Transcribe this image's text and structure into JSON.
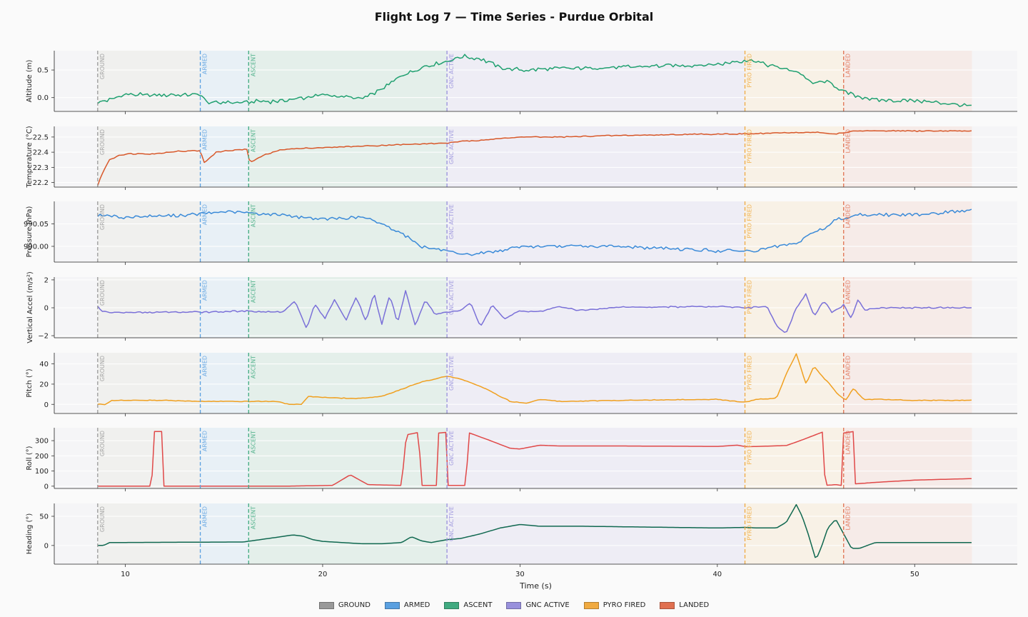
{
  "title": "Flight Log 7 — Time Series - Purdue Orbital",
  "chart_data": {
    "type": "line",
    "xlabel": "Time (s)",
    "xlim": [
      6.4,
      55.2
    ],
    "xticks": [
      10,
      20,
      30,
      40,
      50
    ],
    "x_start": 8.6,
    "x_end": 52.9,
    "phases": [
      {
        "name": "GROUND",
        "start": 8.6,
        "end": 13.8,
        "color": "#999999",
        "shade": "#f0f0ee"
      },
      {
        "name": "ARMED",
        "start": 13.8,
        "end": 16.25,
        "color": "#5aa0e0",
        "shade": "#e8f0f6"
      },
      {
        "name": "ASCENT",
        "start": 16.25,
        "end": 26.3,
        "color": "#40aa80",
        "shade": "#e4efea"
      },
      {
        "name": "GNC ACTIVE",
        "start": 26.3,
        "end": 41.4,
        "color": "#9890dc",
        "shade": "#eeedf5"
      },
      {
        "name": "PYRO FIRED",
        "start": 41.4,
        "end": 46.4,
        "color": "#f0aa40",
        "shade": "#f8f1e6"
      },
      {
        "name": "LANDED",
        "start": 46.4,
        "end": 52.9,
        "color": "#e07050",
        "shade": "#f6ebe8"
      }
    ],
    "panels": [
      {
        "ylabel": "Altitude (m)",
        "ylim": [
          -0.25,
          0.85
        ],
        "yticks": [
          0.0,
          0.5
        ],
        "tick_decimals": 1,
        "color": "#20a070",
        "noise": 0.04,
        "x": [
          8.6,
          10,
          13.8,
          14.2,
          16.2,
          18,
          20,
          22,
          23,
          24,
          25,
          26.3,
          27,
          28,
          29,
          30,
          35,
          40,
          41.4,
          42,
          43,
          44.2,
          44.8,
          45.5,
          46.4,
          48,
          50,
          52.9
        ],
        "y": [
          -0.1,
          0.05,
          0.05,
          -0.1,
          -0.08,
          -0.06,
          0.05,
          -0.02,
          0.15,
          0.4,
          0.55,
          0.65,
          0.75,
          0.7,
          0.55,
          0.5,
          0.55,
          0.6,
          0.68,
          0.65,
          0.55,
          0.45,
          0.25,
          0.3,
          0.1,
          -0.05,
          -0.05,
          -0.15
        ]
      },
      {
        "ylabel": "Temperature (°C)",
        "ylim": [
          22.17,
          22.57
        ],
        "yticks": [
          22.2,
          22.3,
          22.4,
          22.5
        ],
        "tick_decimals": 1,
        "color": "#d8582a",
        "noise": 0.004,
        "x": [
          8.6,
          8.9,
          9.2,
          9.7,
          10.3,
          11.5,
          12.5,
          13.8,
          14.0,
          14.6,
          15.2,
          16.2,
          16.3,
          17,
          18,
          20,
          22,
          24,
          26.3,
          27,
          28,
          29,
          30,
          32,
          35,
          40,
          41.4,
          44,
          45,
          46,
          47,
          52.9
        ],
        "y": [
          22.18,
          22.28,
          22.35,
          22.38,
          22.39,
          22.39,
          22.405,
          22.41,
          22.33,
          22.4,
          22.41,
          22.42,
          22.33,
          22.38,
          22.42,
          22.43,
          22.44,
          22.45,
          22.46,
          22.47,
          22.48,
          22.49,
          22.5,
          22.5,
          22.51,
          22.52,
          22.52,
          22.53,
          22.53,
          22.52,
          22.54,
          22.54
        ]
      },
      {
        "ylabel": "Pressure (hPa)",
        "ylim": [
          989.965,
          990.1
        ],
        "yticks": [
          990.0,
          990.05
        ],
        "tick_decimals": 2,
        "color": "#3a8ad8",
        "noise": 0.004,
        "x": [
          8.6,
          10,
          12,
          14,
          15,
          16,
          18,
          20,
          22,
          23,
          24,
          25,
          26.3,
          27,
          29,
          30,
          35,
          40,
          42,
          43,
          44,
          44.8,
          45.5,
          46,
          46.6,
          47,
          50,
          52.9
        ],
        "y": [
          990.07,
          990.065,
          990.068,
          990.072,
          990.078,
          990.075,
          990.07,
          990.06,
          990.065,
          990.05,
          990.03,
          990.0,
          989.99,
          989.98,
          989.99,
          990.0,
          990.0,
          989.99,
          989.99,
          990.0,
          990.005,
          990.03,
          990.04,
          990.06,
          990.065,
          990.07,
          990.07,
          990.08
        ]
      },
      {
        "ylabel": "Vertical Accel (m/s²)",
        "ylim": [
          -2.15,
          2.2
        ],
        "yticks": [
          -2,
          0,
          2
        ],
        "tick_decimals": 0,
        "color": "#7a70d8",
        "noise": 0.06,
        "x": [
          8.6,
          8.9,
          9.2,
          13.8,
          16.2,
          18,
          18.6,
          19.2,
          19.6,
          20.1,
          20.6,
          21.2,
          21.7,
          22.2,
          22.6,
          23.0,
          23.4,
          23.8,
          24.2,
          24.7,
          25.2,
          25.7,
          26.3,
          27,
          27.5,
          28.0,
          28.6,
          29.2,
          30,
          31,
          32,
          33,
          35,
          37,
          40,
          41.4,
          42.5,
          43.1,
          43.5,
          44.0,
          44.5,
          44.9,
          45.4,
          45.8,
          46.4,
          46.8,
          47.1,
          47.5,
          48,
          50,
          52.9
        ],
        "y": [
          0.1,
          -0.3,
          -0.35,
          -0.3,
          -0.25,
          -0.3,
          0.5,
          -1.5,
          0.3,
          -0.8,
          0.6,
          -0.9,
          0.8,
          -1.0,
          1.1,
          -1.2,
          0.9,
          -1.1,
          1.2,
          -1.3,
          0.6,
          -0.5,
          -0.3,
          -0.2,
          0.4,
          -1.4,
          0.2,
          -0.8,
          -0.2,
          -0.3,
          0.1,
          -0.2,
          0.05,
          0.05,
          0.1,
          0.0,
          0.1,
          -1.5,
          -1.8,
          0.0,
          1.0,
          -0.6,
          0.5,
          -0.3,
          0.2,
          -0.8,
          0.6,
          -0.2,
          0.0,
          0.0,
          0.0
        ]
      },
      {
        "ylabel": "Pitch (°)",
        "ylim": [
          -9,
          51
        ],
        "yticks": [
          0,
          20,
          40
        ],
        "tick_decimals": 0,
        "color": "#f0a020",
        "noise": 0.4,
        "x": [
          8.6,
          9.0,
          9.3,
          12,
          14,
          16.2,
          17.7,
          18.3,
          18.9,
          19.3,
          20,
          21,
          22,
          23,
          24,
          25,
          26.3,
          27,
          28,
          29,
          29.5,
          30,
          30.3,
          31,
          32,
          35,
          40,
          41.4,
          42,
          43,
          43.5,
          44.0,
          44.5,
          44.9,
          45.3,
          45.7,
          46.1,
          46.5,
          46.9,
          47.4,
          48,
          50,
          52.9
        ],
        "y": [
          0,
          0,
          4,
          4,
          3,
          3,
          3,
          0,
          0,
          8,
          7,
          6,
          6,
          8,
          15,
          22,
          28,
          25,
          18,
          8,
          3,
          2,
          1,
          5,
          3,
          4,
          5,
          2,
          5,
          6,
          30,
          50,
          20,
          38,
          28,
          20,
          10,
          4,
          16,
          5,
          5,
          4,
          4
        ]
      },
      {
        "ylabel": "Roll (°)",
        "ylim": [
          -15,
          385
        ],
        "yticks": [
          0,
          100,
          200,
          300
        ],
        "tick_decimals": 0,
        "color": "#e04848",
        "x": [
          8.6,
          11.35,
          11.4,
          11.9,
          11.95,
          18,
          20.5,
          21.4,
          22.3,
          24,
          24.25,
          24.3,
          24.9,
          24.95,
          25.8,
          25.85,
          26.3,
          26.35,
          27.3,
          27.35,
          28.5,
          29.5,
          30,
          31,
          32,
          35,
          40,
          41,
          41.5,
          42,
          43.5,
          44.2,
          45.4,
          45.45,
          46,
          46.3,
          46.4,
          46.9,
          46.95,
          48,
          50,
          52.9
        ],
        "y": [
          0,
          0,
          360,
          360,
          0,
          0,
          5,
          75,
          10,
          5,
          355,
          340,
          355,
          5,
          5,
          350,
          355,
          5,
          5,
          355,
          300,
          250,
          245,
          270,
          265,
          265,
          262,
          270,
          260,
          262,
          268,
          300,
          360,
          5,
          10,
          5,
          350,
          360,
          15,
          25,
          40,
          50
        ]
      },
      {
        "ylabel": "Heading (°)",
        "ylim": [
          -32,
          72
        ],
        "yticks": [
          0,
          50
        ],
        "tick_decimals": 0,
        "color": "#106850",
        "x": [
          8.6,
          8.9,
          9.2,
          16,
          18.5,
          19,
          19.5,
          20,
          21,
          22,
          23,
          24,
          24.5,
          25,
          25.5,
          26.3,
          27,
          28,
          29,
          30,
          31,
          33,
          40,
          41.4,
          42,
          43,
          43.5,
          44,
          44.3,
          44.6,
          45,
          45.3,
          45.6,
          46,
          46.4,
          46.8,
          47.2,
          47.6,
          48,
          50,
          52.9
        ],
        "y": [
          0,
          0,
          5,
          6,
          18,
          16,
          10,
          7,
          5,
          3,
          3,
          5,
          15,
          8,
          5,
          10,
          12,
          20,
          30,
          36,
          33,
          33,
          30,
          31,
          30,
          30,
          40,
          70,
          50,
          20,
          -25,
          0,
          30,
          45,
          20,
          -5,
          -5,
          0,
          5,
          5,
          5
        ]
      }
    ]
  }
}
